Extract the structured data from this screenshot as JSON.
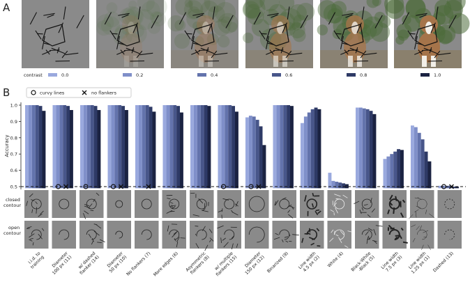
{
  "panel_a": {
    "letter": "A",
    "legend_title": "contrast",
    "contrast_labels": [
      "0.0",
      "0.2",
      "0.4",
      "0.6",
      "0.8",
      "1.0"
    ]
  },
  "panel_b": {
    "letter": "B",
    "legend_curvy": "curvy lines",
    "legend_flankers": "no flankers",
    "row_closed": [
      "closed",
      "contour"
    ],
    "row_open": [
      "open",
      "contour"
    ]
  },
  "chart_data": {
    "type": "bar",
    "ylabel": "Accuracy",
    "ylim": [
      0.5,
      1.0
    ],
    "yticks": [
      "0.5",
      "0.6",
      "0.7",
      "0.8",
      "0.9",
      "1.0"
    ],
    "chance_level": 0.5,
    "series": [
      {
        "name": "0.0"
      },
      {
        "name": "0.2"
      },
      {
        "name": "0.4"
      },
      {
        "name": "0.6"
      },
      {
        "name": "0.8"
      },
      {
        "name": "1.0"
      }
    ],
    "groups": [
      {
        "label": [
          "i.i.d. to",
          "training"
        ],
        "values": [
          1.0,
          1.0,
          1.0,
          1.0,
          0.995,
          0.965
        ],
        "curvy": false,
        "no_flankers": false
      },
      {
        "label": [
          "Diameter",
          "100 px (11)"
        ],
        "values": [
          1.0,
          1.0,
          1.0,
          1.0,
          0.995,
          0.97
        ],
        "curvy": true,
        "no_flankers": true
      },
      {
        "label": [
          "w/ dashed",
          "flanker (14)"
        ],
        "values": [
          1.0,
          1.0,
          1.0,
          1.0,
          0.995,
          0.97
        ],
        "curvy": true,
        "no_flankers": false
      },
      {
        "label": [
          "Diameter",
          "50 px (10)"
        ],
        "values": [
          1.0,
          1.0,
          1.0,
          1.0,
          0.995,
          0.97
        ],
        "curvy": true,
        "no_flankers": true
      },
      {
        "label": [
          "No flankers (7)"
        ],
        "values": [
          1.0,
          1.0,
          1.0,
          1.0,
          0.99,
          0.96
        ],
        "curvy": false,
        "no_flankers": true
      },
      {
        "label": [
          "More edges (6)"
        ],
        "values": [
          1.0,
          1.0,
          1.0,
          1.0,
          0.995,
          0.955
        ],
        "curvy": false,
        "no_flankers": false
      },
      {
        "label": [
          "Asymmetric",
          "flankers (8)"
        ],
        "values": [
          1.0,
          1.0,
          1.0,
          1.0,
          1.0,
          0.995
        ],
        "curvy": false,
        "no_flankers": false
      },
      {
        "label": [
          "w/ multiple",
          "flankers (15)"
        ],
        "values": [
          1.0,
          1.0,
          1.0,
          1.0,
          0.995,
          0.96
        ],
        "curvy": true,
        "no_flankers": false
      },
      {
        "label": [
          "Diameter",
          "150 px (12)"
        ],
        "values": [
          0.925,
          0.935,
          0.93,
          0.91,
          0.87,
          0.755
        ],
        "curvy": true,
        "no_flankers": true
      },
      {
        "label": [
          "Binarized (9)"
        ],
        "values": [
          1.0,
          1.0,
          1.0,
          1.0,
          1.0,
          0.995
        ],
        "curvy": false,
        "no_flankers": false
      },
      {
        "label": [
          "Line width",
          "4.5 px (2)"
        ],
        "values": [
          0.89,
          0.93,
          0.955,
          0.975,
          0.985,
          0.975
        ],
        "curvy": false,
        "no_flankers": false
      },
      {
        "label": [
          "White (4)"
        ],
        "values": [
          0.585,
          0.535,
          0.53,
          0.525,
          0.52,
          0.515
        ],
        "curvy": false,
        "no_flankers": false
      },
      {
        "label": [
          "Black-White",
          "-Black (5)"
        ],
        "values": [
          0.985,
          0.985,
          0.98,
          0.975,
          0.965,
          0.945
        ],
        "curvy": false,
        "no_flankers": false
      },
      {
        "label": [
          "Line width",
          "7.5 px (3)"
        ],
        "values": [
          0.67,
          0.685,
          0.7,
          0.715,
          0.73,
          0.725
        ],
        "curvy": false,
        "no_flankers": false
      },
      {
        "label": [
          "Line width",
          "1.25 px (1)"
        ],
        "values": [
          0.875,
          0.865,
          0.83,
          0.79,
          0.715,
          0.655
        ],
        "curvy": false,
        "no_flankers": false
      },
      {
        "label": [
          "Dashed (13)"
        ],
        "values": [
          0.505,
          0.505,
          0.505,
          0.505,
          0.5,
          0.5
        ],
        "curvy": true,
        "no_flankers": true
      }
    ]
  },
  "colors": {
    "series": [
      "#9aa9de",
      "#7f8fc9",
      "#6373ac",
      "#48568a",
      "#2e3a66",
      "#1b2342"
    ],
    "stimulus_bg": "#8a8a8a",
    "dog_fur": "#a5744a",
    "foliage": "#4c6b3a"
  }
}
